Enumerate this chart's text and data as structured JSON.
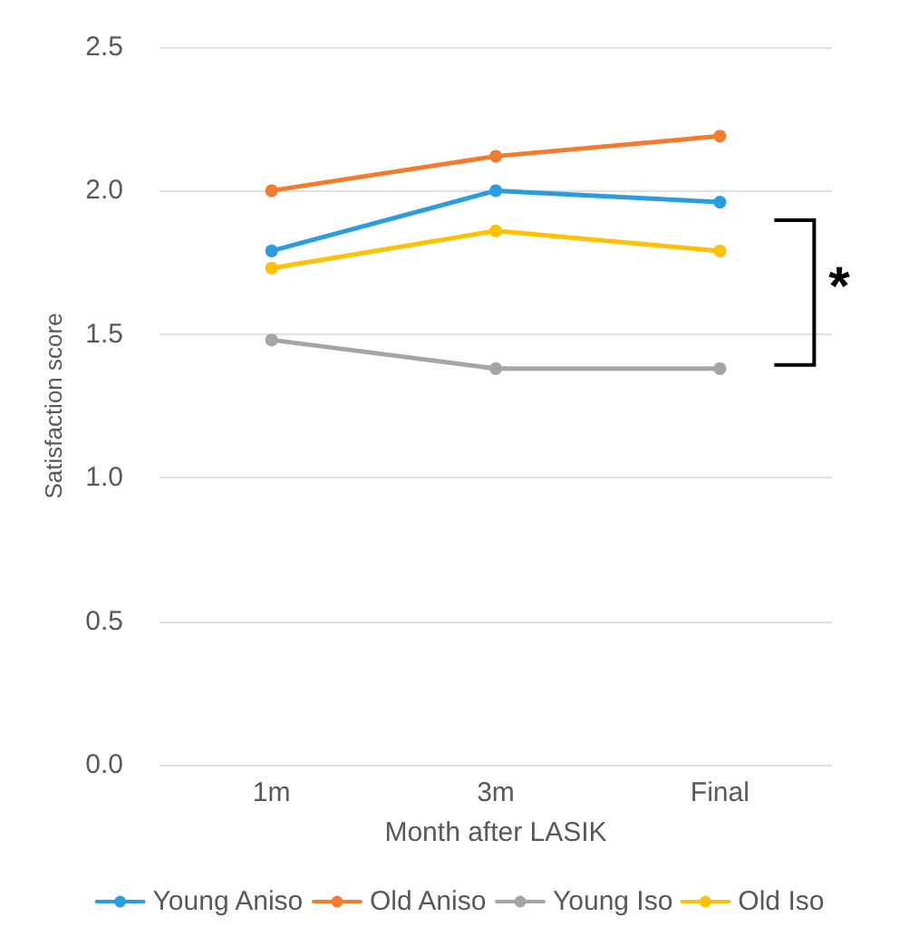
{
  "chart_data": {
    "type": "line",
    "xlabel": "Month after LASIK",
    "ylabel": "Satisfaction score",
    "categories": [
      "1m",
      "3m",
      "Final"
    ],
    "series": [
      {
        "name": "Young Aniso",
        "color": "#2a9de0",
        "values": [
          1.79,
          2.0,
          1.96
        ]
      },
      {
        "name": "Old Aniso",
        "color": "#f47b2c",
        "values": [
          2.0,
          2.12,
          2.19
        ]
      },
      {
        "name": "Young Iso",
        "color": "#a5a5a5",
        "values": [
          1.48,
          1.38,
          1.38
        ]
      },
      {
        "name": "Old Iso",
        "color": "#ffc000",
        "values": [
          1.73,
          1.86,
          1.79
        ]
      }
    ],
    "ylim": [
      0,
      2.5
    ],
    "yticks": [
      {
        "value": 0,
        "label": "0.0"
      },
      0.5,
      {
        "value": 1,
        "label": "1.0"
      },
      1.5,
      {
        "value": 2,
        "label": "2.0"
      },
      2.5
    ],
    "grid": "y",
    "legend": "bottom",
    "marker": "circle",
    "line_style": "solid",
    "annotations": [
      "*"
    ]
  }
}
